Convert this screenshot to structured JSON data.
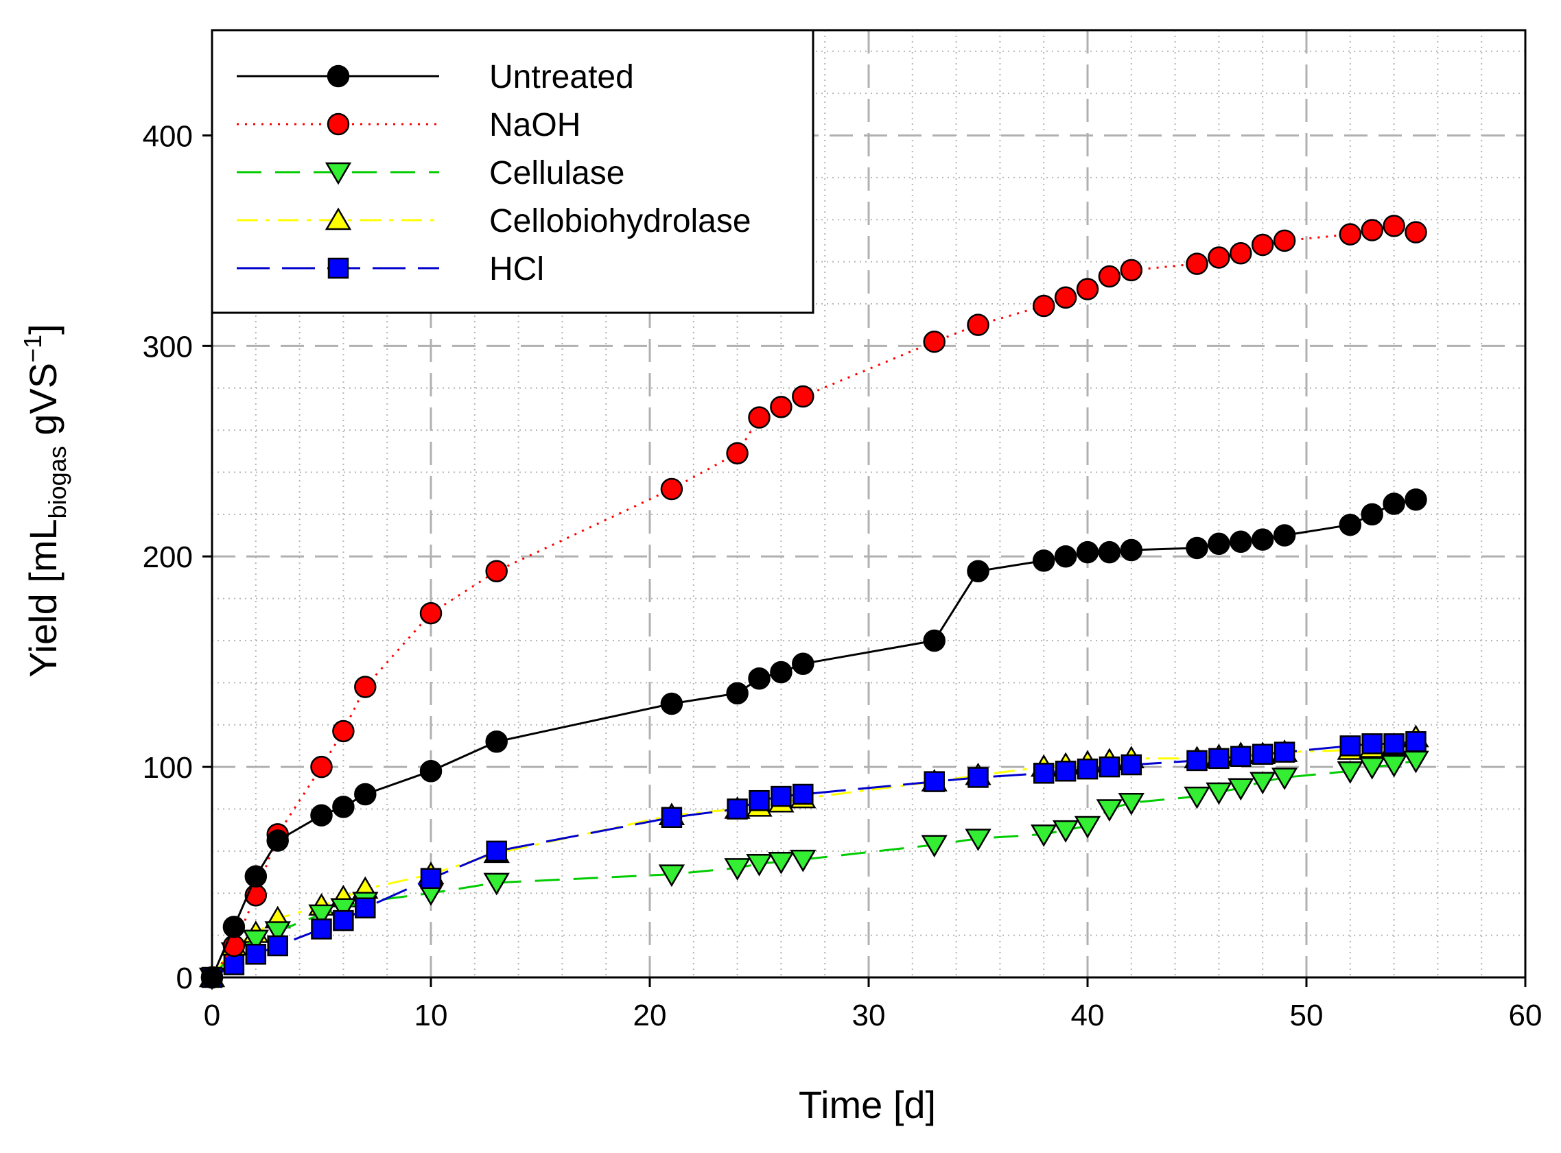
{
  "chart_data": {
    "type": "line",
    "xlabel": "Time [d]",
    "ylabel": {
      "prefix": "Yield [mL",
      "sub": "biogas",
      "mid": " gVS",
      "sup": "−1",
      "suffix": "]"
    },
    "xlim": [
      0,
      60
    ],
    "ylim": [
      0,
      450
    ],
    "xticks": [
      0,
      10,
      20,
      30,
      40,
      50,
      60
    ],
    "yticks": [
      0,
      100,
      200,
      300,
      400
    ],
    "grid": true,
    "legend_position": "top-left",
    "series": [
      {
        "name": "Untreated",
        "marker": "circle",
        "line": "solid",
        "line_color": "#000000",
        "fill": "#000000",
        "x": [
          0,
          1,
          2,
          3,
          5,
          6,
          7,
          10,
          13,
          21,
          24,
          25,
          26,
          27,
          33,
          35,
          38,
          39,
          40,
          41,
          42,
          45,
          46,
          47,
          48,
          49,
          52,
          53,
          54,
          55
        ],
        "y": [
          0,
          24,
          48,
          65,
          77,
          81,
          87,
          98,
          112,
          130,
          135,
          142,
          145,
          149,
          160,
          193,
          198,
          200,
          202,
          202,
          203,
          204,
          206,
          207,
          208,
          210,
          215,
          220,
          225,
          227
        ]
      },
      {
        "name": "NaOH",
        "marker": "circle",
        "line": "dotted",
        "line_color": "#ff0000",
        "fill": "#ff0000",
        "x": [
          0,
          1,
          2,
          3,
          5,
          6,
          7,
          10,
          13,
          21,
          24,
          25,
          26,
          27,
          33,
          35,
          38,
          39,
          40,
          41,
          42,
          45,
          46,
          47,
          48,
          49,
          52,
          53,
          54,
          55
        ],
        "y": [
          0,
          15,
          39,
          68,
          100,
          117,
          138,
          173,
          193,
          232,
          249,
          266,
          271,
          276,
          302,
          310,
          319,
          323,
          327,
          333,
          336,
          339,
          342,
          344,
          348,
          350,
          353,
          355,
          357,
          354
        ]
      },
      {
        "name": "Cellulase",
        "marker": "triangle-down",
        "line": "dashed",
        "line_color": "#00cc00",
        "fill": "#33ee33",
        "x": [
          0,
          1,
          2,
          3,
          5,
          6,
          7,
          10,
          13,
          21,
          24,
          25,
          26,
          27,
          33,
          35,
          38,
          39,
          40,
          41,
          42,
          45,
          46,
          47,
          48,
          49,
          52,
          53,
          54,
          55
        ],
        "y": [
          0,
          12,
          18,
          22,
          30,
          33,
          36,
          40,
          45,
          49,
          52,
          54,
          55,
          56,
          63,
          66,
          68,
          70,
          72,
          80,
          83,
          86,
          88,
          90,
          93,
          95,
          98,
          100,
          101,
          103
        ]
      },
      {
        "name": "Cellobiohydrolase",
        "marker": "triangle-up",
        "line": "dashdot",
        "line_color": "#ffff00",
        "fill": "#ffff00",
        "x": [
          0,
          1,
          2,
          3,
          5,
          6,
          7,
          10,
          13,
          21,
          24,
          25,
          26,
          27,
          33,
          35,
          38,
          39,
          40,
          41,
          42,
          45,
          46,
          47,
          48,
          49,
          52,
          53,
          54,
          55
        ],
        "y": [
          0,
          15,
          21,
          28,
          34,
          38,
          42,
          49,
          59,
          77,
          80,
          81,
          83,
          85,
          93,
          96,
          100,
          101,
          102,
          103,
          104,
          104,
          105,
          106,
          106,
          107,
          108,
          109,
          110,
          114
        ]
      },
      {
        "name": "HCl",
        "marker": "square",
        "line": "longdash",
        "line_color": "#0000cc",
        "fill": "#0000ff",
        "x": [
          0,
          1,
          2,
          3,
          5,
          6,
          7,
          10,
          13,
          21,
          24,
          25,
          26,
          27,
          33,
          35,
          38,
          39,
          40,
          41,
          42,
          45,
          46,
          47,
          48,
          49,
          52,
          53,
          54,
          55
        ],
        "y": [
          0,
          6,
          11,
          15,
          23,
          27,
          33,
          47,
          60,
          76,
          80,
          84,
          86,
          87,
          93,
          95,
          97,
          98,
          99,
          100,
          101,
          103,
          104,
          105,
          106,
          107,
          110,
          111,
          111,
          112
        ]
      }
    ]
  }
}
